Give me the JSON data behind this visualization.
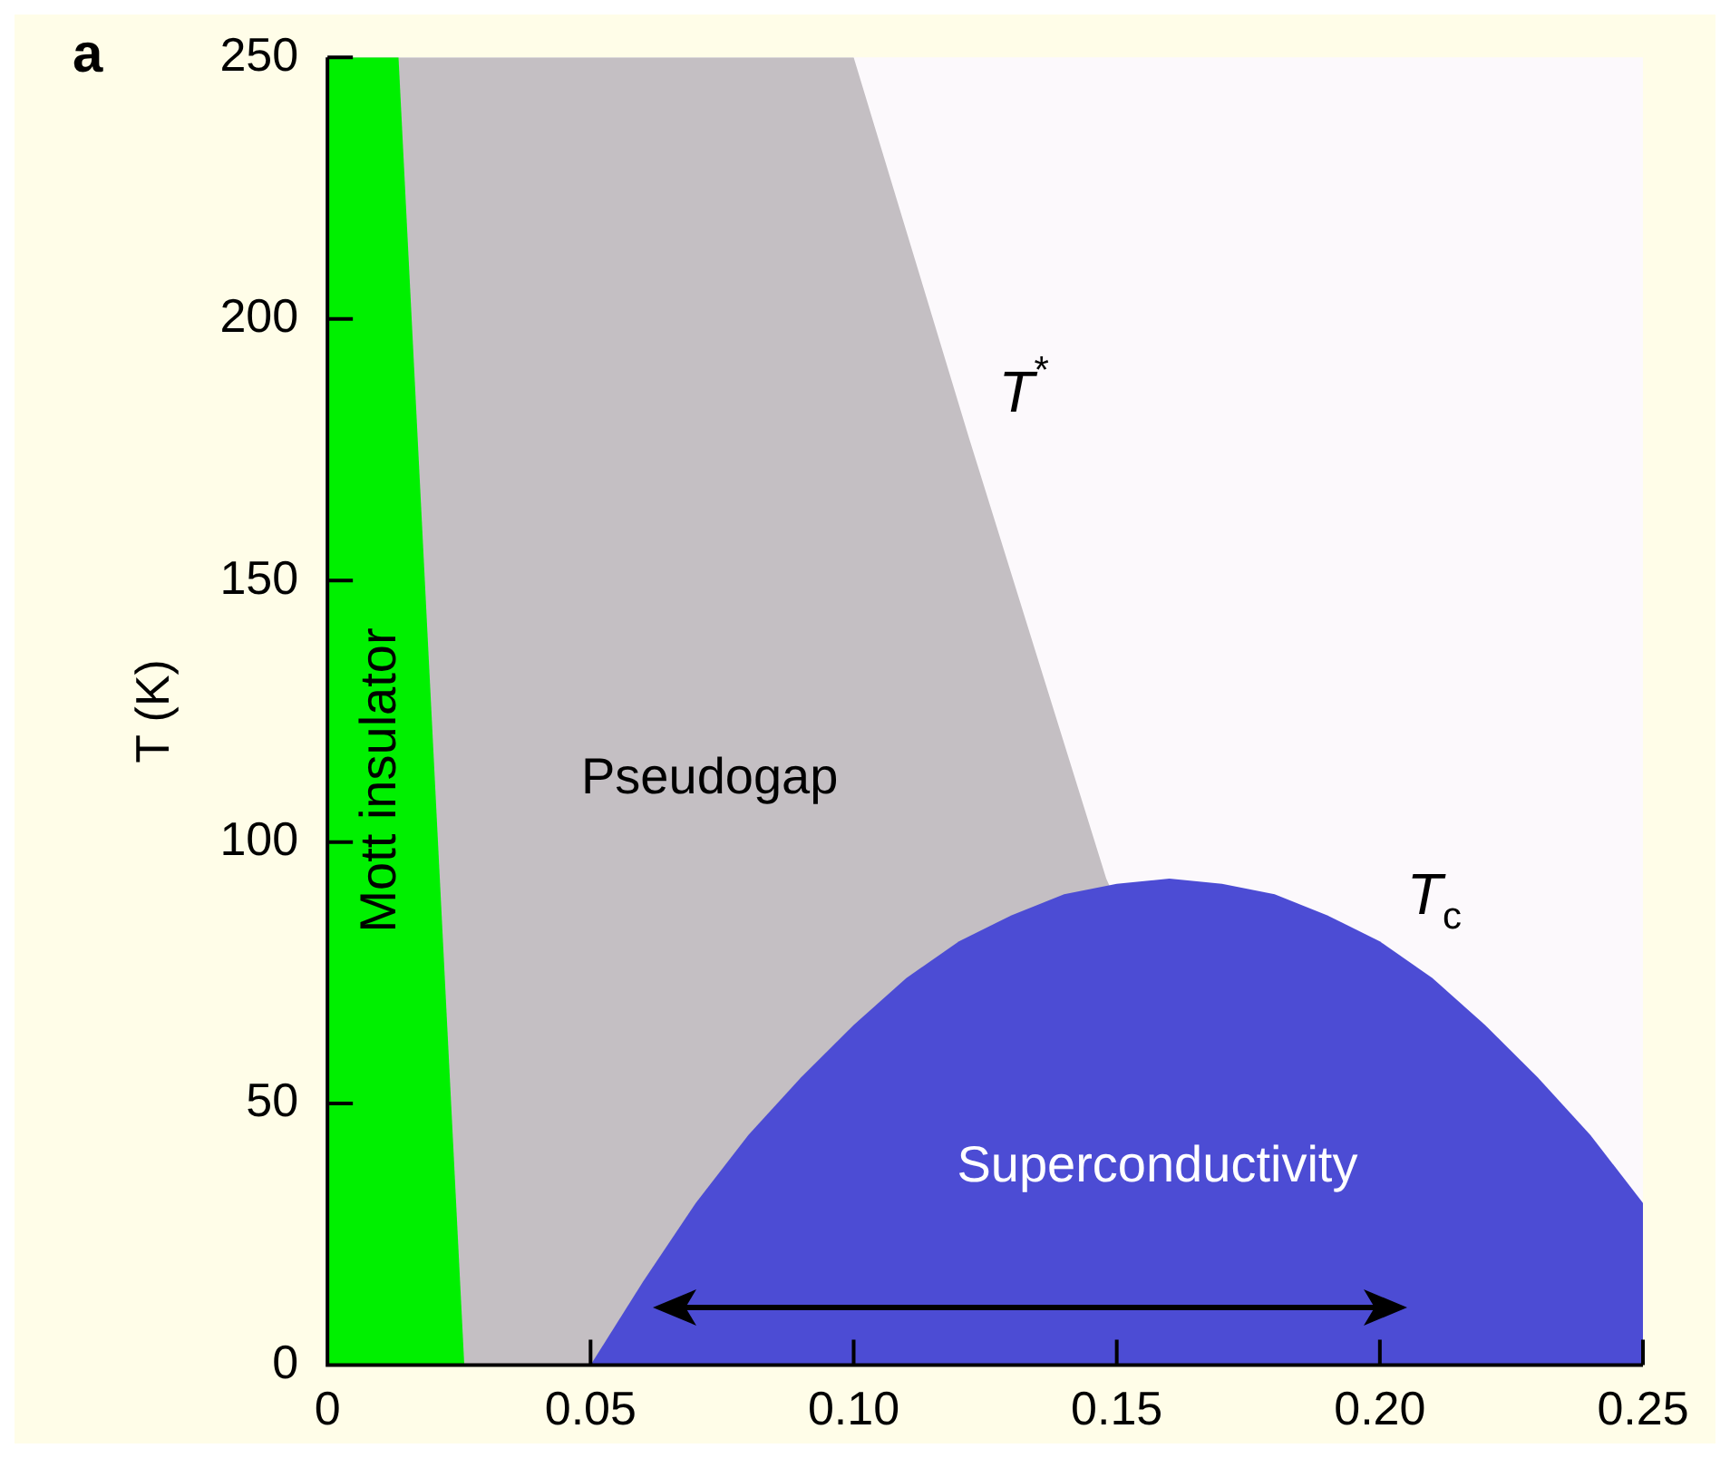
{
  "chart_data": {
    "type": "area",
    "xlabel": null,
    "ylabel": "T (K)",
    "xlim": [
      0,
      0.25
    ],
    "ylim": [
      0,
      250
    ],
    "xticks": [
      0,
      0.05,
      {
        "value": 0.1,
        "label": "0.10"
      },
      {
        "value": 0.15,
        "label": "0.15"
      },
      {
        "value": 0.2,
        "label": "0.20"
      },
      0.25
    ],
    "yticks": [
      0,
      50,
      100,
      150,
      200,
      250
    ],
    "series": [
      {
        "name": "Pseudogap",
        "color": "#c4bfc3",
        "x": [
          0,
          0.1,
          0.122,
          0.148,
          0.19
        ],
        "values": [
          250,
          250,
          177,
          93,
          0
        ]
      },
      {
        "name": "Mott insulator",
        "color": "#00f000",
        "x": [
          0,
          0.0135,
          0.026
        ],
        "values": [
          250,
          250,
          0
        ]
      },
      {
        "name": "Superconductivity",
        "color": "#4c4cd4",
        "x": [
          0.05,
          0.06,
          0.07,
          0.08,
          0.09,
          0.1,
          0.11,
          0.12,
          0.13,
          0.14,
          0.15,
          0.16,
          0.17,
          0.18,
          0.19,
          0.2,
          0.21,
          0.22,
          0.23,
          0.24,
          0.25
        ],
        "values": [
          0,
          16,
          31,
          44,
          55,
          65,
          74,
          81,
          86,
          90,
          92,
          93,
          92,
          90,
          86,
          81,
          74,
          65,
          55,
          44,
          31
        ]
      }
    ],
    "annotations": [
      "a",
      {
        "text": "T$^{*}$",
        "x": 0.122,
        "y": 177
      },
      {
        "text": "T$_{c}$",
        "x": 0.2,
        "y": 81
      }
    ]
  }
}
